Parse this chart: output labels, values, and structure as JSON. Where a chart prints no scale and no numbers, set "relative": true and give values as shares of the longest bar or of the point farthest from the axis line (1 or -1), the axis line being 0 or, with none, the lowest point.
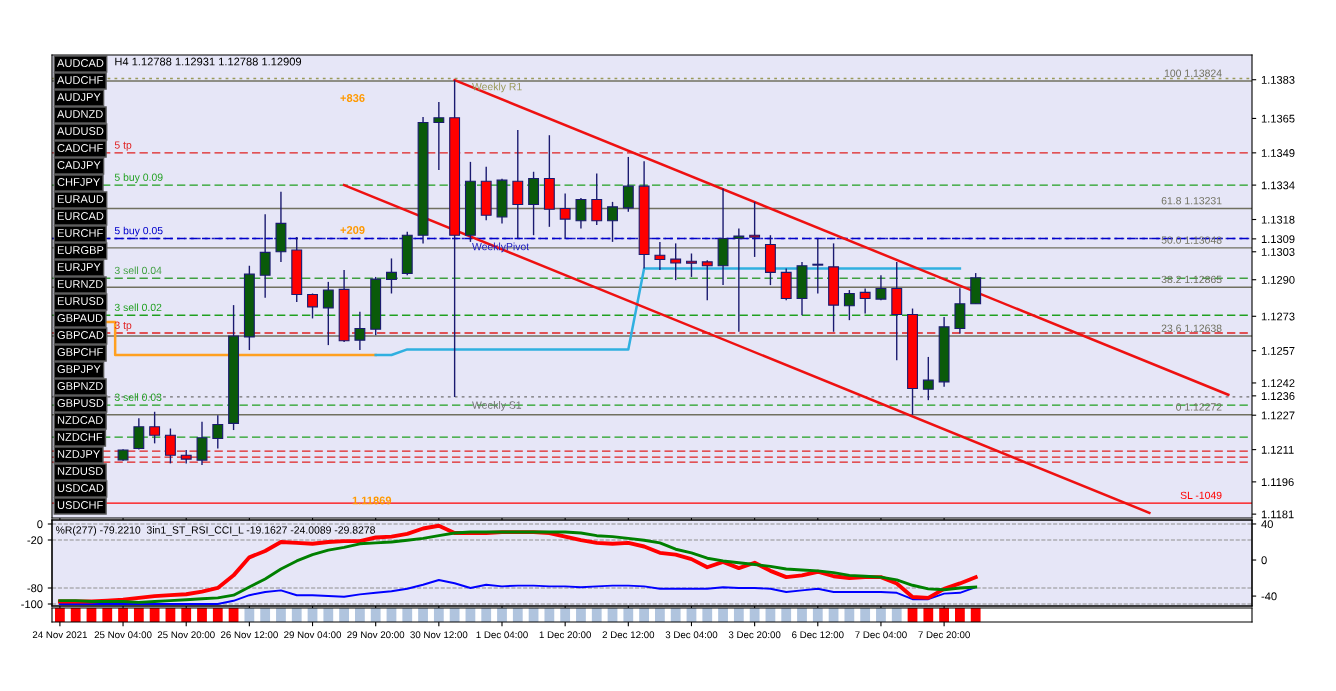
{
  "chart_data": [
    {
      "type": "candlestick",
      "title": "H4 1.12788 1.12931 1.12788 1.12909",
      "ohlc": [
        null,
        null,
        null,
        null,
        [
          1.12062,
          1.12112,
          1.12058,
          1.12108
        ],
        [
          1.12115,
          1.12256,
          1.1211,
          1.12216
        ],
        [
          1.12216,
          1.12286,
          1.12139,
          1.12177
        ],
        [
          1.12177,
          1.12208,
          1.12046,
          1.12084
        ],
        [
          1.12084,
          1.12108,
          1.12046,
          1.12066
        ],
        [
          1.12061,
          1.12239,
          1.12038,
          1.12165
        ],
        [
          1.12162,
          1.1227,
          1.12115,
          1.12227
        ],
        [
          1.12232,
          1.12782,
          1.12201,
          1.12638
        ],
        [
          1.12634,
          1.12965,
          1.12573,
          1.12926
        ],
        [
          1.12921,
          1.13204,
          1.12816,
          1.13027
        ],
        [
          1.1303,
          1.13309,
          1.12983,
          1.13162
        ],
        [
          1.13038,
          1.13099,
          1.12797,
          1.12831
        ],
        [
          1.12831,
          1.12836,
          1.1272,
          1.12774
        ],
        [
          1.12769,
          1.1289,
          1.12596,
          1.12852
        ],
        [
          1.12855,
          1.12945,
          1.12611,
          1.12616
        ],
        [
          1.12619,
          1.12751,
          1.12573,
          1.12673
        ],
        [
          1.1267,
          1.12913,
          1.12642,
          1.12903
        ],
        [
          1.12901,
          1.12999,
          1.12836,
          1.12934
        ],
        [
          1.12929,
          1.13123,
          1.12921,
          1.13107
        ],
        [
          1.13107,
          1.13657,
          1.13069,
          1.13631
        ],
        [
          1.13631,
          1.13727,
          1.1341,
          1.13653
        ],
        [
          1.13653,
          1.13828,
          1.12355,
          1.13107
        ],
        [
          1.13107,
          1.13448,
          1.13076,
          1.13358
        ],
        [
          1.13358,
          1.13425,
          1.13177,
          1.132
        ],
        [
          1.13192,
          1.1337,
          1.13162,
          1.13363
        ],
        [
          1.13358,
          1.13596,
          1.13092,
          1.1325
        ],
        [
          1.1325,
          1.13402,
          1.13107,
          1.13371
        ],
        [
          1.13371,
          1.13572,
          1.13146,
          1.13228
        ],
        [
          1.13231,
          1.13301,
          1.13092,
          1.13182
        ],
        [
          1.13174,
          1.1328,
          1.13138,
          1.13273
        ],
        [
          1.13273,
          1.13394,
          1.13154,
          1.13174
        ],
        [
          1.13174,
          1.13262,
          1.13076,
          1.13239
        ],
        [
          1.13234,
          1.13471,
          1.13216,
          1.13335
        ],
        [
          1.13335,
          1.13451,
          1.12952,
          1.13017
        ],
        [
          1.13014,
          1.13076,
          1.12945,
          1.12994
        ],
        [
          1.12996,
          1.13069,
          1.12898,
          1.12978
        ],
        [
          1.12986,
          1.13022,
          1.12913,
          1.12977
        ],
        [
          1.12983,
          1.12991,
          1.12805,
          1.12965
        ],
        [
          1.12965,
          1.13324,
          1.12875,
          1.13092
        ],
        [
          1.13092,
          1.13138,
          1.12658,
          1.13103
        ],
        [
          1.13107,
          1.13262,
          1.13006,
          1.13098
        ],
        [
          1.13064,
          1.13107,
          1.12875,
          1.12934
        ],
        [
          1.12934,
          1.12952,
          1.12805,
          1.12813
        ],
        [
          1.12813,
          1.12983,
          1.12735,
          1.12965
        ],
        [
          1.12968,
          1.13092,
          1.12836,
          1.12972
        ],
        [
          1.1296,
          1.13069,
          1.12658,
          1.12782
        ],
        [
          1.12779,
          1.12852,
          1.12712,
          1.12836
        ],
        [
          1.12841,
          1.12859,
          1.12743,
          1.12813
        ],
        [
          1.1281,
          1.12921,
          1.12805,
          1.12859
        ],
        [
          1.12859,
          1.12983,
          1.12526,
          1.12738
        ],
        [
          1.12738,
          1.12766,
          1.12272,
          1.12394
        ],
        [
          1.12391,
          1.12541,
          1.1234,
          1.12433
        ],
        [
          1.12425,
          1.12727,
          1.12402,
          1.12681
        ],
        [
          1.12673,
          1.1286,
          1.1265,
          1.12788
        ],
        [
          1.12788,
          1.12931,
          1.12788,
          1.12909
        ],
        null,
        null,
        null,
        null,
        null,
        null,
        null,
        null,
        null,
        null,
        null,
        null,
        null,
        null,
        null,
        null,
        null
      ],
      "colors": [
        null,
        null,
        null,
        null,
        "#0a5a0a",
        "#0a5a0a",
        "#ff0000",
        "#ff0000",
        "#ff0000",
        "#0a5a0a",
        "#0a5a0a",
        "#0a5a0a",
        "#0a5a0a",
        "#0a5a0a",
        "#0a5a0a",
        "#ff0000",
        "#ff0000",
        "#0a5a0a",
        "#ff0000",
        "#0a5a0a",
        "#0a5a0a",
        "#0a5a0a",
        "#0a5a0a",
        "#0a5a0a",
        "#0a5a0a",
        "#ff0000",
        "#0a5a0a",
        "#ff0000",
        "#0a5a0a",
        "#ff0000",
        "#0a5a0a",
        "#ff0000",
        "#ff0000",
        "#0a5a0a",
        "#ff0000",
        "#0a5a0a",
        "#0a5a0a",
        "#ff0000",
        "#ff0000",
        "#ff0000",
        "#ff0000",
        "#ff0000",
        "#0a5a0a",
        "#0a5a0a",
        "#ff0000",
        "#ff0000",
        "#ff0000",
        "#0a5a0a",
        "#0a5a0a",
        "#ff0000",
        "#0a5a0a",
        "#ff0000",
        "#0a5a0a",
        "#ff0000",
        "#ff0000",
        "#0a5a0a",
        "#0a5a0a",
        "#0a5a0a",
        "#0a5a0a",
        null,
        null,
        null,
        null,
        null,
        null,
        null,
        null,
        null,
        null,
        null,
        null,
        null,
        null,
        null,
        null,
        null
      ],
      "series": [
        {
          "type": "step",
          "color": "#ffa020",
          "values": [
            null,
            null,
            null,
            1.12704,
            1.1255,
            1.1255,
            1.1255,
            1.1255,
            1.1255,
            1.1255,
            1.1255,
            null,
            1.1255,
            1.1255,
            1.1255,
            1.1255,
            1.1255,
            1.1255,
            1.1255,
            1.1255,
            1.1255,
            null,
            null,
            null,
            null,
            null,
            null,
            null,
            null,
            null,
            null,
            null,
            null,
            null,
            null,
            null,
            null,
            null,
            null,
            null,
            null,
            null,
            null,
            null,
            null,
            null,
            null,
            null,
            null,
            null,
            null,
            null,
            null,
            null,
            null,
            null,
            null,
            null,
            null,
            null,
            null,
            null,
            null,
            null,
            null,
            null,
            null,
            null,
            null,
            null,
            null,
            null,
            null,
            null,
            null,
            null
          ]
        },
        {
          "type": "line",
          "color": "#30b0e0",
          "values": [
            null,
            null,
            null,
            null,
            null,
            null,
            null,
            null,
            null,
            null,
            null,
            null,
            null,
            null,
            null,
            null,
            null,
            null,
            null,
            null,
            1.1255,
            1.1255,
            1.12576,
            1.12576,
            1.12576,
            1.12576,
            1.12576,
            1.12576,
            1.12576,
            1.12576,
            1.12576,
            1.12576,
            1.12576,
            1.12576,
            1.12576,
            1.12576,
            1.12576,
            1.12952,
            1.12952,
            1.12952,
            1.12952,
            1.12952,
            1.12952,
            1.12952,
            1.12952,
            null,
            1.12952,
            null,
            1.12952,
            null,
            1.12952,
            1.12952,
            1.12952,
            1.12952,
            1.12952,
            1.12952,
            1.12952,
            1.12952,
            null,
            null,
            null,
            null,
            null,
            null,
            null,
            null,
            null,
            null,
            null,
            null,
            null,
            null,
            null,
            null,
            null,
            null
          ]
        },
        {
          "type": "line",
          "color": "#ee1111",
          "values": [
            null,
            null,
            null,
            null,
            null,
            null,
            null,
            null,
            null,
            null,
            null,
            null,
            null,
            null,
            null,
            null,
            null,
            null,
            null,
            null,
            null,
            null,
            null,
            null,
            null,
            1.13828,
            null,
            null,
            null,
            null,
            null,
            null,
            null,
            null,
            null,
            null,
            null,
            null,
            null,
            null,
            null,
            null,
            null,
            null,
            null,
            null,
            null,
            null,
            null,
            null,
            null,
            null,
            null,
            null,
            null,
            null,
            null,
            null,
            null,
            null,
            null,
            null,
            null,
            null,
            null,
            null,
            null,
            null,
            null,
            null,
            null,
            null,
            null,
            null,
            1.12365,
            null
          ]
        },
        {
          "type": "line",
          "color": "#ee1111",
          "values": [
            null,
            null,
            null,
            null,
            null,
            null,
            null,
            null,
            null,
            null,
            null,
            null,
            null,
            null,
            null,
            null,
            null,
            null,
            1.1334,
            null,
            null,
            null,
            null,
            null,
            null,
            null,
            null,
            null,
            null,
            null,
            null,
            null,
            null,
            null,
            null,
            null,
            null,
            null,
            null,
            null,
            null,
            null,
            null,
            null,
            null,
            null,
            null,
            null,
            null,
            null,
            null,
            null,
            null,
            null,
            null,
            null,
            null,
            null,
            null,
            null,
            null,
            null,
            null,
            null,
            null,
            null,
            null,
            null,
            null,
            1.11816,
            null,
            null,
            null,
            null,
            null,
            null
          ]
        }
      ],
      "ylim": [
        1.11792,
        1.13945
      ],
      "yticks": [
        1.1181,
        1.1196,
        1.1211,
        1.1227,
        1.1236,
        1.1242,
        1.1257,
        1.1273,
        {
          "value": 1.129,
          "label": "1.1290"
        },
        1.1303,
        1.1309,
        1.1318,
        1.1334,
        1.1349,
        1.1365,
        1.1383
      ],
      "ref_lines": [
        {
          "axis": "y",
          "value": 1.13836,
          "label": "Weekly R1",
          "color": "#9a9a5a",
          "line_style": "dotted"
        },
        {
          "axis": "y",
          "value": 1.13092,
          "label": "WeeklyPivot",
          "color": "#2020c0",
          "line_style": "dotted"
        },
        {
          "axis": "y",
          "value": 1.12355,
          "label": "Weekly S1",
          "color": "#707070",
          "line_style": "dotted"
        },
        {
          "axis": "y",
          "value": 1.13824,
          "label": "100 1.13824",
          "color": "#707060",
          "line_style": "solid"
        },
        {
          "axis": "y",
          "value": 1.13231,
          "label": "61.8 1.13231",
          "color": "#707060",
          "line_style": "solid"
        },
        {
          "axis": "y",
          "value": 1.13048,
          "label": "50.0 1.13048",
          "color": "#707060",
          "line_style": "solid"
        },
        {
          "axis": "y",
          "value": 1.12865,
          "label": "38.2 1.12865",
          "color": "#707060",
          "line_style": "solid"
        },
        {
          "axis": "y",
          "value": 1.12638,
          "label": "23.6 1.12638",
          "color": "#707060",
          "line_style": "solid"
        },
        {
          "axis": "y",
          "value": 1.12272,
          "label": "0 1.12272",
          "color": "#707060",
          "line_style": "solid"
        },
        {
          "axis": "y",
          "value": 1.11861,
          "label": "SL -1049",
          "color": "#ff0000",
          "line_style": "solid"
        },
        {
          "axis": "y",
          "value": 1.1349,
          "label": "5 tp",
          "color": "#e02020",
          "line_style": "dashed"
        },
        {
          "axis": "y",
          "value": 1.1334,
          "label": "5 buy 0.09",
          "color": "#20a020",
          "line_style": "dashed"
        },
        {
          "axis": "y",
          "value": 1.13092,
          "label": "5 buy 0.05",
          "color": "#0000cc",
          "line_style": "dashed"
        },
        {
          "axis": "y",
          "value": 1.12907,
          "label": "3 sell 0.04",
          "color": "#40a040",
          "line_style": "dashed"
        },
        {
          "axis": "y",
          "value": 1.12735,
          "label": "3 sell 0.02",
          "color": "#20a020",
          "line_style": "dashed"
        },
        {
          "axis": "y",
          "value": 1.12652,
          "label": "3 tp",
          "color": "#e02020",
          "line_style": "dashed"
        },
        {
          "axis": "y",
          "value": 1.12317,
          "label": "3 sell 0.03",
          "color": "#20a020",
          "line_style": "dashed"
        },
        {
          "axis": "y",
          "value": 1.12168,
          "label": null,
          "color": "#20a020",
          "line_style": "dashed"
        },
        {
          "axis": "y",
          "value": 1.12103,
          "label": null,
          "color": "#e02020",
          "line_style": "dashed"
        },
        {
          "axis": "y",
          "value": 1.12075,
          "label": null,
          "color": "#e02020",
          "line_style": "dashed"
        },
        {
          "axis": "y",
          "value": 1.12052,
          "label": null,
          "color": "#e02020",
          "line_style": "dashed"
        }
      ],
      "annotations": [
        "AUDCAD",
        "AUDCHF",
        "AUDJPY",
        "AUDNZD",
        "AUDUSD",
        "CADCHF",
        "CADJPY",
        "CHFJPY",
        "EURAUD",
        "EURCAD",
        "EURCHF",
        "EURGBP",
        "EURJPY",
        "EURNZD",
        "EURUSD",
        "GBPAUD",
        "GBPCAD",
        "GBPCHF",
        "GBPJPY",
        "GBPNZD",
        "GBPUSD",
        "NZDCAD",
        "NZDCHF",
        "NZDJPY",
        "NZDUSD",
        "USDCAD",
        "USDCHF",
        {
          "text": "+836"
        },
        {
          "text": "+209"
        },
        {
          "text": "1.11869",
          "y": 1.11869
        }
      ],
      "tick_labels": "y"
    },
    {
      "type": "line",
      "title": "%R(277) -79.2210  3in1_ST_RSI_CCI_L -19.1627 -24.0089 -29.8278",
      "series": [
        {
          "color": "#ff0000",
          "axis": "y2",
          "values": [
            -46,
            -46,
            -46,
            -45,
            -44,
            -42,
            -40,
            -39,
            -38,
            -35,
            -31,
            -17,
            3,
            10,
            20,
            19,
            18,
            20,
            21,
            21,
            25,
            26,
            29,
            35,
            38,
            30,
            30,
            30,
            31,
            31,
            31,
            30,
            26,
            22,
            19,
            18,
            19,
            15,
            8,
            6,
            1,
            -8,
            -2,
            -9,
            -3,
            -12,
            -19,
            -17,
            -13,
            -18,
            -20,
            -19,
            -19,
            -26,
            -41,
            -42,
            -32,
            -26,
            -19,
            null,
            null,
            null,
            null,
            null,
            null,
            null,
            null,
            null,
            null,
            null,
            null,
            null,
            null,
            null,
            null,
            null
          ]
        },
        {
          "color": "#008000",
          "axis": "y2",
          "values": [
            -45,
            -45,
            -46,
            -46,
            -46,
            -47,
            -46,
            -45,
            -44,
            -43,
            -42,
            -39,
            -30,
            -21,
            -10,
            -1,
            6,
            11,
            14,
            18,
            19,
            20,
            22,
            24,
            27,
            30,
            31,
            31,
            31,
            31,
            31,
            31,
            31,
            30,
            27,
            26,
            24,
            22,
            19,
            12,
            8,
            2,
            -1,
            -3,
            -5,
            -7,
            -10,
            -11,
            -12,
            -14,
            -17,
            -18,
            -19,
            -22,
            -28,
            -32,
            -33,
            -31,
            -30,
            null,
            null,
            null,
            null,
            null,
            null,
            null,
            null,
            null,
            null,
            null,
            null,
            null,
            null,
            null,
            null,
            null
          ]
        },
        {
          "color": "#0000ff",
          "values": [
            -100,
            -100,
            -100,
            -100,
            -100,
            -100,
            -100,
            -100,
            -100,
            -100,
            -100,
            -96,
            -89,
            -85,
            -83,
            -89,
            -89,
            -90,
            -91,
            -88,
            -86,
            -84,
            -81,
            -76,
            -70,
            -74,
            -80,
            -76,
            -78,
            -77,
            -77,
            -78,
            -78,
            -79,
            -78,
            -77,
            -77,
            -78,
            -81,
            -81,
            -81,
            -81,
            -79,
            -80,
            -80,
            -81,
            -85,
            -83,
            -81,
            -85,
            -85,
            -85,
            -85,
            -86,
            -94,
            -94,
            -87,
            -86,
            -79,
            null,
            null,
            null,
            null,
            null,
            null,
            null,
            null,
            null,
            null,
            null,
            null,
            null,
            null,
            null,
            null,
            null
          ]
        }
      ],
      "ylim": [
        -102.5,
        5
      ],
      "yticks": [
        0,
        -20,
        -80,
        -100
      ],
      "y2lim": [
        -51,
        44.4
      ],
      "y2ticks": [
        40,
        0,
        -40
      ],
      "grid": "y",
      "tick_labels": "y"
    },
    {
      "type": "bar",
      "relative": true,
      "categories": [
        "24 Nov 2021",
        null,
        null,
        null,
        "25 Nov 04:00",
        null,
        null,
        null,
        "25 Nov 20:00",
        null,
        null,
        null,
        "26 Nov 12:00",
        null,
        null,
        null,
        "29 Nov 04:00",
        null,
        null,
        null,
        "29 Nov 20:00",
        null,
        null,
        null,
        "30 Nov 12:00",
        null,
        null,
        null,
        "1 Dec 04:00",
        null,
        null,
        null,
        "1 Dec 20:00",
        null,
        null,
        null,
        "2 Dec 12:00",
        null,
        null,
        null,
        "3 Dec 04:00",
        null,
        null,
        null,
        "3 Dec 20:00",
        null,
        null,
        null,
        "6 Dec 12:00",
        null,
        null,
        null,
        "7 Dec 04:00",
        null,
        null,
        null,
        "7 Dec 20:00",
        null,
        null,
        null,
        null,
        null,
        null,
        null,
        null,
        null,
        null,
        null,
        null,
        null,
        null,
        null,
        null,
        null,
        null,
        null
      ],
      "values": [
        1,
        1,
        1,
        1,
        1,
        1,
        1,
        1,
        1,
        1,
        1,
        1,
        1,
        1,
        1,
        1,
        1,
        1,
        1,
        1,
        1,
        1,
        1,
        1,
        1,
        1,
        1,
        1,
        1,
        1,
        1,
        1,
        1,
        1,
        1,
        1,
        1,
        1,
        1,
        1,
        1,
        1,
        1,
        1,
        1,
        1,
        1,
        1,
        1,
        1,
        1,
        1,
        1,
        1,
        1,
        1,
        1,
        1,
        1,
        null,
        null,
        null,
        null,
        null,
        null,
        null,
        null,
        null,
        null,
        null,
        null,
        null,
        null,
        null,
        null,
        null
      ],
      "colors": [
        "#ff0000",
        "#ff0000",
        "#ff0000",
        "#ff0000",
        "#ff0000",
        "#ff0000",
        "#ff0000",
        "#ff0000",
        "#ff0000",
        "#ff0000",
        "#ff0000",
        "#ff0000",
        "#b0c4de",
        "#b0c4de",
        "#b0c4de",
        "#b0c4de",
        "#b0c4de",
        "#b0c4de",
        "#b0c4de",
        "#b0c4de",
        "#b0c4de",
        "#b0c4de",
        "#b0c4de",
        "#b0c4de",
        "#b0c4de",
        "#b0c4de",
        "#b0c4de",
        "#b0c4de",
        "#b0c4de",
        "#b0c4de",
        "#b0c4de",
        "#b0c4de",
        "#b0c4de",
        "#b0c4de",
        "#b0c4de",
        "#b0c4de",
        "#b0c4de",
        "#b0c4de",
        "#b0c4de",
        "#b0c4de",
        "#b0c4de",
        "#b0c4de",
        "#b0c4de",
        "#b0c4de",
        "#b0c4de",
        "#b0c4de",
        "#b0c4de",
        "#b0c4de",
        "#b0c4de",
        "#b0c4de",
        "#b0c4de",
        "#b0c4de",
        "#b0c4de",
        "#b0c4de",
        "#ff0000",
        "#ff0000",
        "#ff0000",
        "#ff0000",
        "#ff0000",
        null,
        null,
        null,
        null,
        null,
        null,
        null,
        null,
        null,
        null,
        null,
        null,
        null,
        null,
        null,
        null,
        null
      ],
      "tick_labels": "x"
    }
  ]
}
